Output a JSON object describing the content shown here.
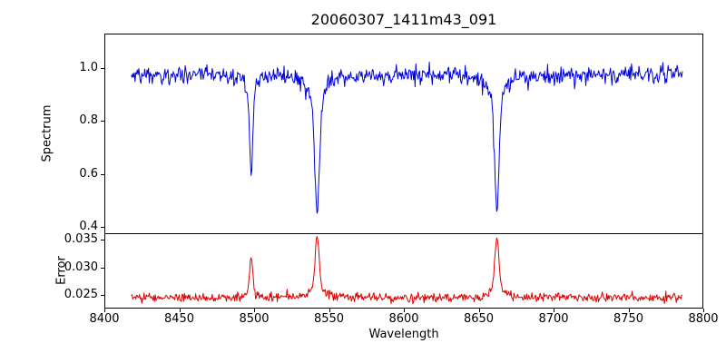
{
  "title": "20060307_1411m43_091",
  "xlabel": "Wavelength",
  "x_axis": {
    "lim": [
      8400,
      8800
    ],
    "ticks": [
      8400,
      8450,
      8500,
      8550,
      8600,
      8650,
      8700,
      8750,
      8800
    ],
    "tick_labels": [
      "8400",
      "8450",
      "8500",
      "8550",
      "8600",
      "8650",
      "8700",
      "8750",
      "8800"
    ]
  },
  "chart_data": [
    {
      "type": "line",
      "name": "spectrum",
      "ylabel": "Spectrum",
      "color": "#0000dd",
      "ylim": [
        0.376,
        1.13
      ],
      "yticks": [
        0.4,
        0.6,
        0.8,
        1.0
      ],
      "ytick_labels": [
        "0.4",
        "0.6",
        "0.8",
        "1.0"
      ],
      "x_start": 8418,
      "x_end": 8786,
      "x_step": 0.5,
      "baseline": 0.975,
      "noise_sigma": 0.016,
      "spike_probability": 0.02,
      "spike_max_depth": 0.05,
      "seed": 12345,
      "absorption_lines": [
        {
          "center": 8498.0,
          "depth": 0.38,
          "core_sigma": 1.0,
          "wing_gamma": 2.0,
          "approx_min": 0.59
        },
        {
          "center": 8542.1,
          "depth": 0.53,
          "core_sigma": 1.4,
          "wing_gamma": 4.0,
          "approx_min": 0.44
        },
        {
          "center": 8662.1,
          "depth": 0.52,
          "core_sigma": 1.3,
          "wing_gamma": 3.5,
          "approx_min": 0.45
        }
      ]
    },
    {
      "type": "line",
      "name": "error",
      "ylabel": "Error",
      "color": "#dd0000",
      "ylim": [
        0.0225,
        0.0362
      ],
      "yticks": [
        0.025,
        0.03,
        0.035
      ],
      "ytick_labels": [
        "0.025",
        "0.030",
        "0.035"
      ],
      "x_start": 8418,
      "x_end": 8786,
      "x_step": 0.5,
      "baseline": 0.0245,
      "noise_sigma": 0.0004,
      "seed": 777,
      "peaks": [
        {
          "center": 8498.0,
          "amplitude": 0.007,
          "core_sigma": 1.0,
          "wing_gamma": 2.0,
          "approx_max": 0.0315
        },
        {
          "center": 8542.1,
          "amplitude": 0.0112,
          "core_sigma": 1.2,
          "wing_gamma": 3.0,
          "approx_max": 0.0357
        },
        {
          "center": 8662.1,
          "amplitude": 0.011,
          "core_sigma": 1.2,
          "wing_gamma": 3.0,
          "approx_max": 0.0355
        }
      ]
    }
  ]
}
